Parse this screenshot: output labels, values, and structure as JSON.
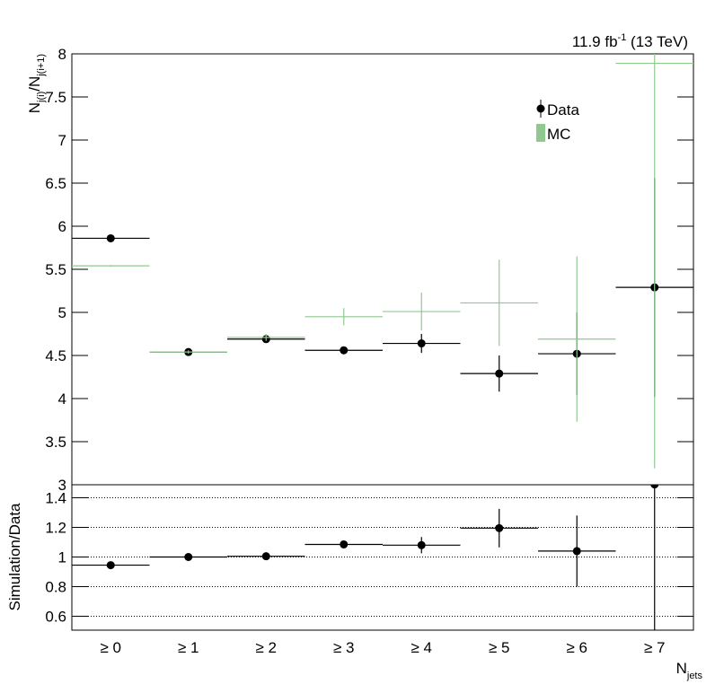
{
  "chart_data": [
    {
      "type": "errorbar",
      "annotation": [
        "11.9 fb",
        "-1",
        " (13 TeV)"
      ],
      "ylabel": [
        "N",
        "j(i)",
        "/N",
        "j(i+1)"
      ],
      "categories": [
        "≥ 0",
        "≥ 1",
        "≥ 2",
        "≥ 3",
        "≥ 4",
        "≥ 5",
        "≥ 6",
        "≥ 7"
      ],
      "xlabel": [
        "N",
        "jets"
      ],
      "series": [
        {
          "name": "Data",
          "color": "#000000",
          "values": [
            5.86,
            4.54,
            4.69,
            4.56,
            4.64,
            4.29,
            4.52,
            5.29
          ],
          "errors": [
            0.02,
            0.02,
            0.03,
            0.04,
            0.11,
            0.21,
            0.48,
            1.27
          ]
        },
        {
          "name": "MC",
          "color": "#8fc98f",
          "values": [
            5.54,
            4.54,
            4.71,
            4.95,
            5.01,
            5.11,
            4.69,
            7.89
          ],
          "errors": [
            0.01,
            0.02,
            0.04,
            0.1,
            0.22,
            0.5,
            0.96,
            4.7
          ]
        }
      ],
      "ylim": [
        3,
        8
      ],
      "yticks": [
        3,
        3.5,
        4,
        4.5,
        5,
        5.5,
        6,
        6.5,
        7,
        7.5,
        8
      ],
      "legend": "upper right"
    },
    {
      "type": "errorbar",
      "ylabel": "Simulation/Data",
      "series": [
        {
          "color": "#000000",
          "values": [
            0.945,
            1.0,
            1.005,
            1.085,
            1.08,
            1.195,
            1.04,
            1.49
          ],
          "errors": [
            0.01,
            0.01,
            0.01,
            0.01,
            0.055,
            0.13,
            0.24,
            1.0
          ]
        }
      ],
      "ylim": [
        0.5,
        1.5
      ],
      "yticks": [
        0.6,
        0.8,
        1,
        1.2,
        1.4
      ],
      "grid": true
    }
  ]
}
